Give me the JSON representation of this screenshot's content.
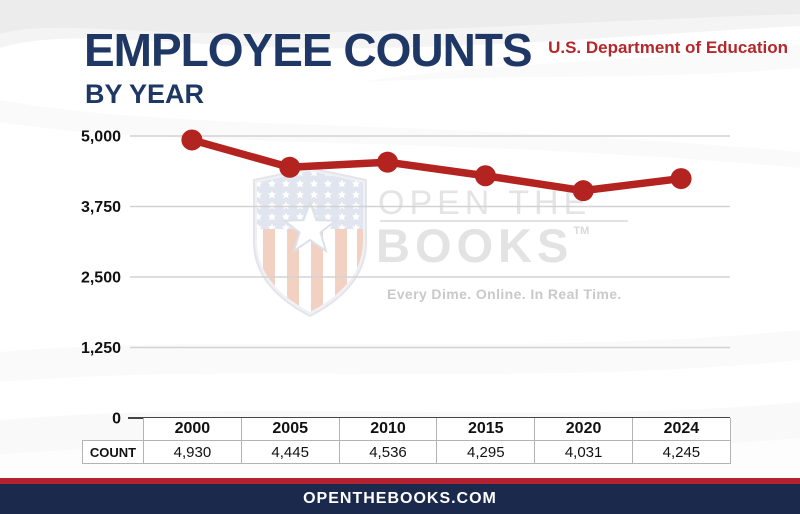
{
  "header": {
    "title": "EMPLOYEE COUNTS",
    "subtitle": "BY YEAR",
    "agency": "U.S. Department of Education"
  },
  "watermark": {
    "brand_line1": "OPEN THE",
    "brand_line2": "BOOKS",
    "trademark": "TM",
    "tagline": "Every Dime. Online. In Real Time.",
    "shield_icon": "openthebooks-stars-stripes-shield"
  },
  "chart_data": {
    "type": "line",
    "title": "EMPLOYEE COUNTS BY YEAR",
    "xlabel": "",
    "ylabel": "",
    "categories": [
      "2000",
      "2005",
      "2010",
      "2015",
      "2020",
      "2024"
    ],
    "series": [
      {
        "name": "COUNT",
        "values": [
          4930,
          4445,
          4536,
          4295,
          4031,
          4245
        ]
      }
    ],
    "value_labels": [
      "4,930",
      "4,445",
      "4,536",
      "4,295",
      "4,031",
      "4,245"
    ],
    "ylim": [
      0,
      5000
    ],
    "y_ticks": [
      {
        "value": 5000,
        "label": "5,000"
      },
      {
        "value": 3750,
        "label": "3,750"
      },
      {
        "value": 2500,
        "label": "2,500"
      },
      {
        "value": 1250,
        "label": "1,250"
      },
      {
        "value": 0,
        "label": "0"
      }
    ],
    "grid": true,
    "legend": "none",
    "line_color": "#b3231f"
  },
  "table": {
    "row_label": "COUNT"
  },
  "footer": {
    "url": "OPENTHEBOOKS.COM"
  },
  "colors": {
    "navy": "#1e3765",
    "accent_red": "#b4282b",
    "line_red": "#b3231f",
    "stripe_red": "#b22230",
    "footer_navy": "#1b2a4c",
    "grid_gray": "#d2d2d2",
    "axis_dark": "#444444",
    "watermark_gray": "#e3e3e3"
  }
}
